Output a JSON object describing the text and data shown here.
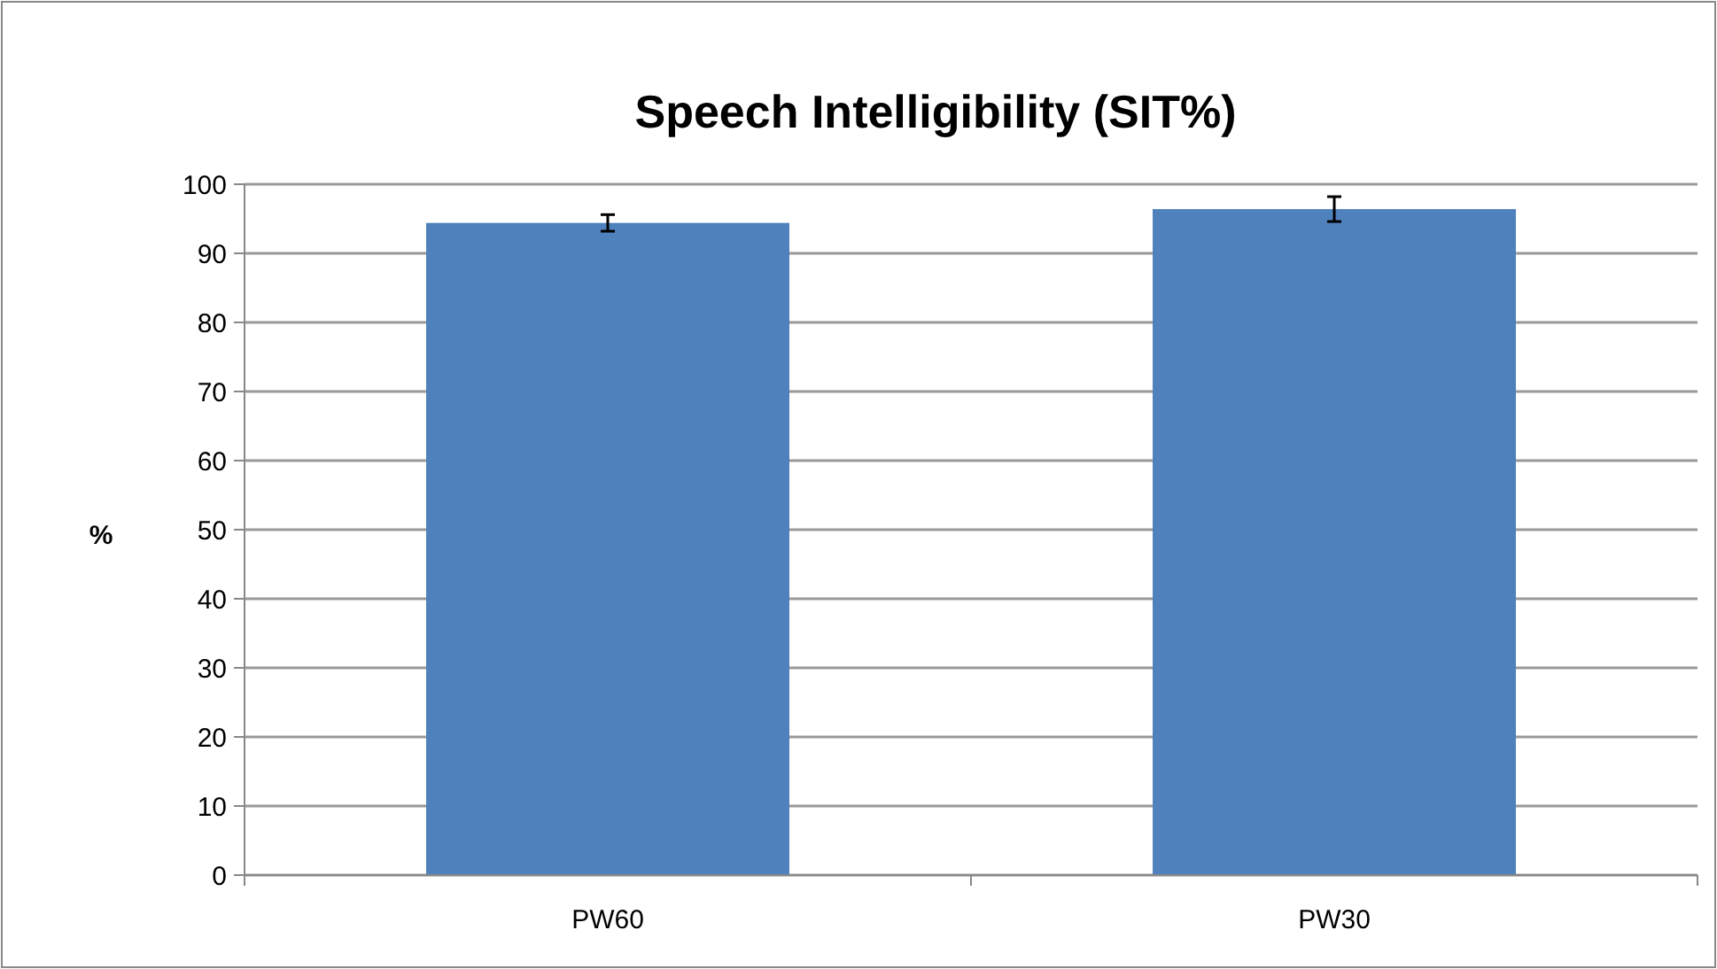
{
  "chart_data": {
    "type": "bar",
    "title": "Speech Intelligibility (SIT%)",
    "ylabel": "%",
    "categories": [
      "PW60",
      "PW30"
    ],
    "values": [
      94.4,
      96.4
    ],
    "errors": [
      1.2,
      1.8
    ],
    "color": "#4f81bd",
    "ylim": [
      0,
      100
    ],
    "yticks": [
      0,
      10,
      20,
      30,
      40,
      50,
      60,
      70,
      80,
      90,
      100
    ],
    "grid": "y"
  }
}
